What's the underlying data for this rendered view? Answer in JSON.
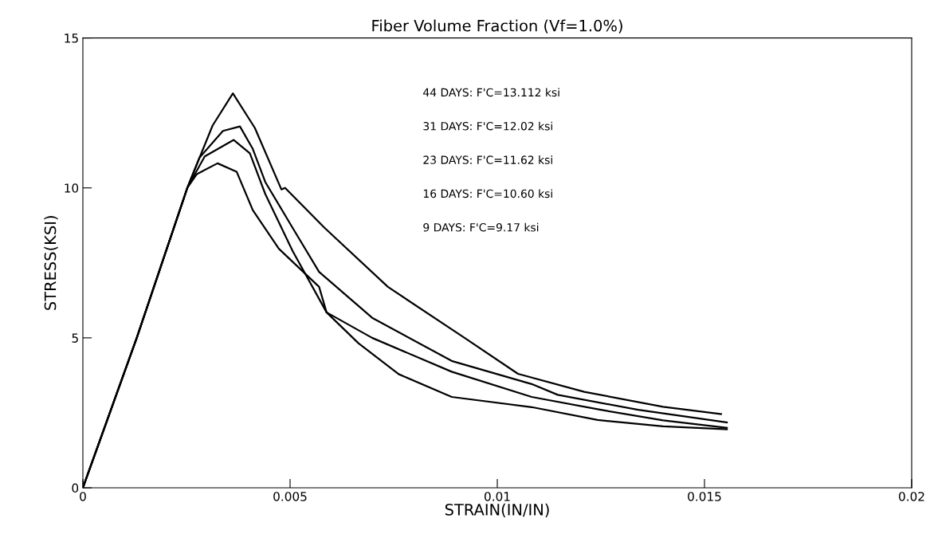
{
  "chart_data": {
    "type": "line",
    "title": "Fiber Volume Fraction (Vf=1.0%)",
    "xlabel": "STRAIN(IN/IN)",
    "ylabel": "STRESS(KSI)",
    "xlim": [
      0,
      0.02
    ],
    "ylim": [
      0,
      15
    ],
    "xticks": [
      0,
      0.005,
      0.01,
      0.015,
      0.02
    ],
    "yticks": [
      0,
      5,
      10,
      15
    ],
    "grid": false,
    "legend": false,
    "marker": "none",
    "line_style": "solid",
    "annotations": [
      "44 DAYS: F'C=13.112 ksi",
      "31 DAYS: F'C=12.02 ksi",
      "23 DAYS: F'C=11.62 ksi",
      "16 DAYS: F'C=10.60 ksi",
      "9 DAYS: F'C=9.17 ksi"
    ],
    "series": [
      {
        "color": "#000000",
        "x": [
          0,
          0.0013,
          0.00252,
          0.00313,
          0.00362,
          0.00415,
          0.00479,
          0.00488,
          0.00583,
          0.00736,
          0.00921,
          0.0105,
          0.0121,
          0.014,
          0.0154
        ],
        "values": [
          0,
          5,
          10,
          12.08,
          13.15,
          12.0,
          9.95,
          10.0,
          8.67,
          6.7,
          5.0,
          3.8,
          3.2,
          2.7,
          2.46
        ]
      },
      {
        "color": "#000000",
        "x": [
          0,
          0.0013,
          0.00252,
          0.00281,
          0.00338,
          0.00379,
          0.0041,
          0.0044,
          0.00506,
          0.0057,
          0.00698,
          0.0089,
          0.01083,
          0.01146,
          0.0134,
          0.01554
        ],
        "values": [
          0,
          5,
          10,
          11.0,
          11.9,
          12.05,
          11.3,
          10.2,
          8.67,
          7.2,
          5.67,
          4.23,
          3.46,
          3.1,
          2.6,
          2.18
        ]
      },
      {
        "color": "#000000",
        "x": [
          0,
          0.0013,
          0.00252,
          0.00294,
          0.00364,
          0.00403,
          0.0044,
          0.00506,
          0.00588,
          0.00698,
          0.0089,
          0.01083,
          0.0125,
          0.014,
          0.01554
        ],
        "values": [
          0,
          5,
          10,
          11.05,
          11.6,
          11.15,
          9.8,
          7.9,
          5.85,
          5.0,
          3.87,
          3.03,
          2.6,
          2.25,
          2.0
        ]
      },
      {
        "color": "#000000",
        "x": [
          0,
          0.0013,
          0.00252,
          0.00275,
          0.00325,
          0.00371,
          0.0041,
          0.00473,
          0.0057,
          0.00588,
          0.00665,
          0.00762,
          0.0089,
          0.01083,
          0.01242,
          0.014,
          0.01554
        ],
        "values": [
          0,
          5,
          10,
          10.46,
          10.82,
          10.54,
          9.26,
          7.97,
          6.7,
          5.85,
          4.82,
          3.79,
          3.03,
          2.69,
          2.26,
          2.05,
          1.95
        ]
      }
    ]
  }
}
